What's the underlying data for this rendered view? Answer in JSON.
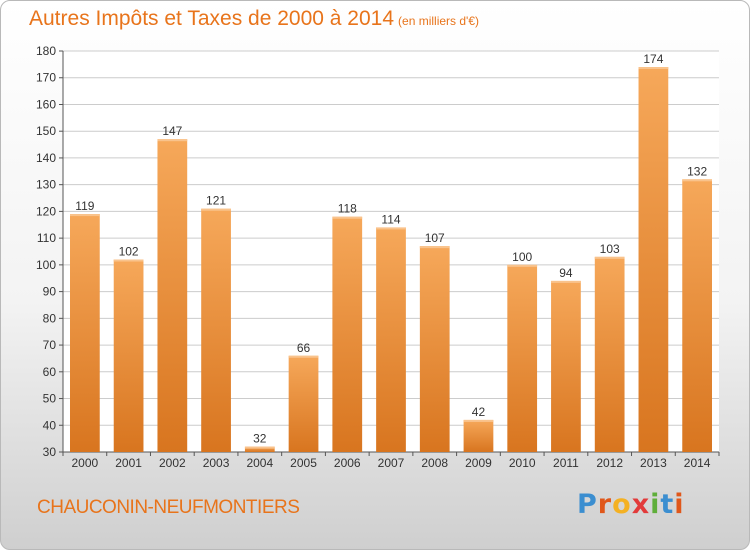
{
  "header": {
    "title": "Autres Impôts et Taxes de 2000 à 2014",
    "unit": "(en milliers d'€)"
  },
  "footer": {
    "town": "CHAUCONIN-NEUFMONTIERS",
    "logo": "Proxiti"
  },
  "colors": {
    "accent": "#e8741b",
    "bar_light": "#f6a85a",
    "bar_dark": "#d8751f",
    "grid": "#cccccc"
  },
  "chart_data": {
    "type": "bar",
    "title": "Autres Impôts et Taxes de 2000 à 2014",
    "subtitle": "(en milliers d'€)",
    "xlabel": "",
    "ylabel": "",
    "categories": [
      "2000",
      "2001",
      "2002",
      "2003",
      "2004",
      "2005",
      "2006",
      "2007",
      "2008",
      "2009",
      "2010",
      "2011",
      "2012",
      "2013",
      "2014"
    ],
    "values": [
      119,
      102,
      147,
      121,
      32,
      66,
      118,
      114,
      107,
      42,
      100,
      94,
      103,
      174,
      132
    ],
    "ylim": [
      30,
      180
    ],
    "yticks": [
      30,
      40,
      50,
      60,
      70,
      80,
      90,
      100,
      110,
      120,
      130,
      140,
      150,
      160,
      170,
      180
    ],
    "grid": true,
    "data_labels": true
  }
}
